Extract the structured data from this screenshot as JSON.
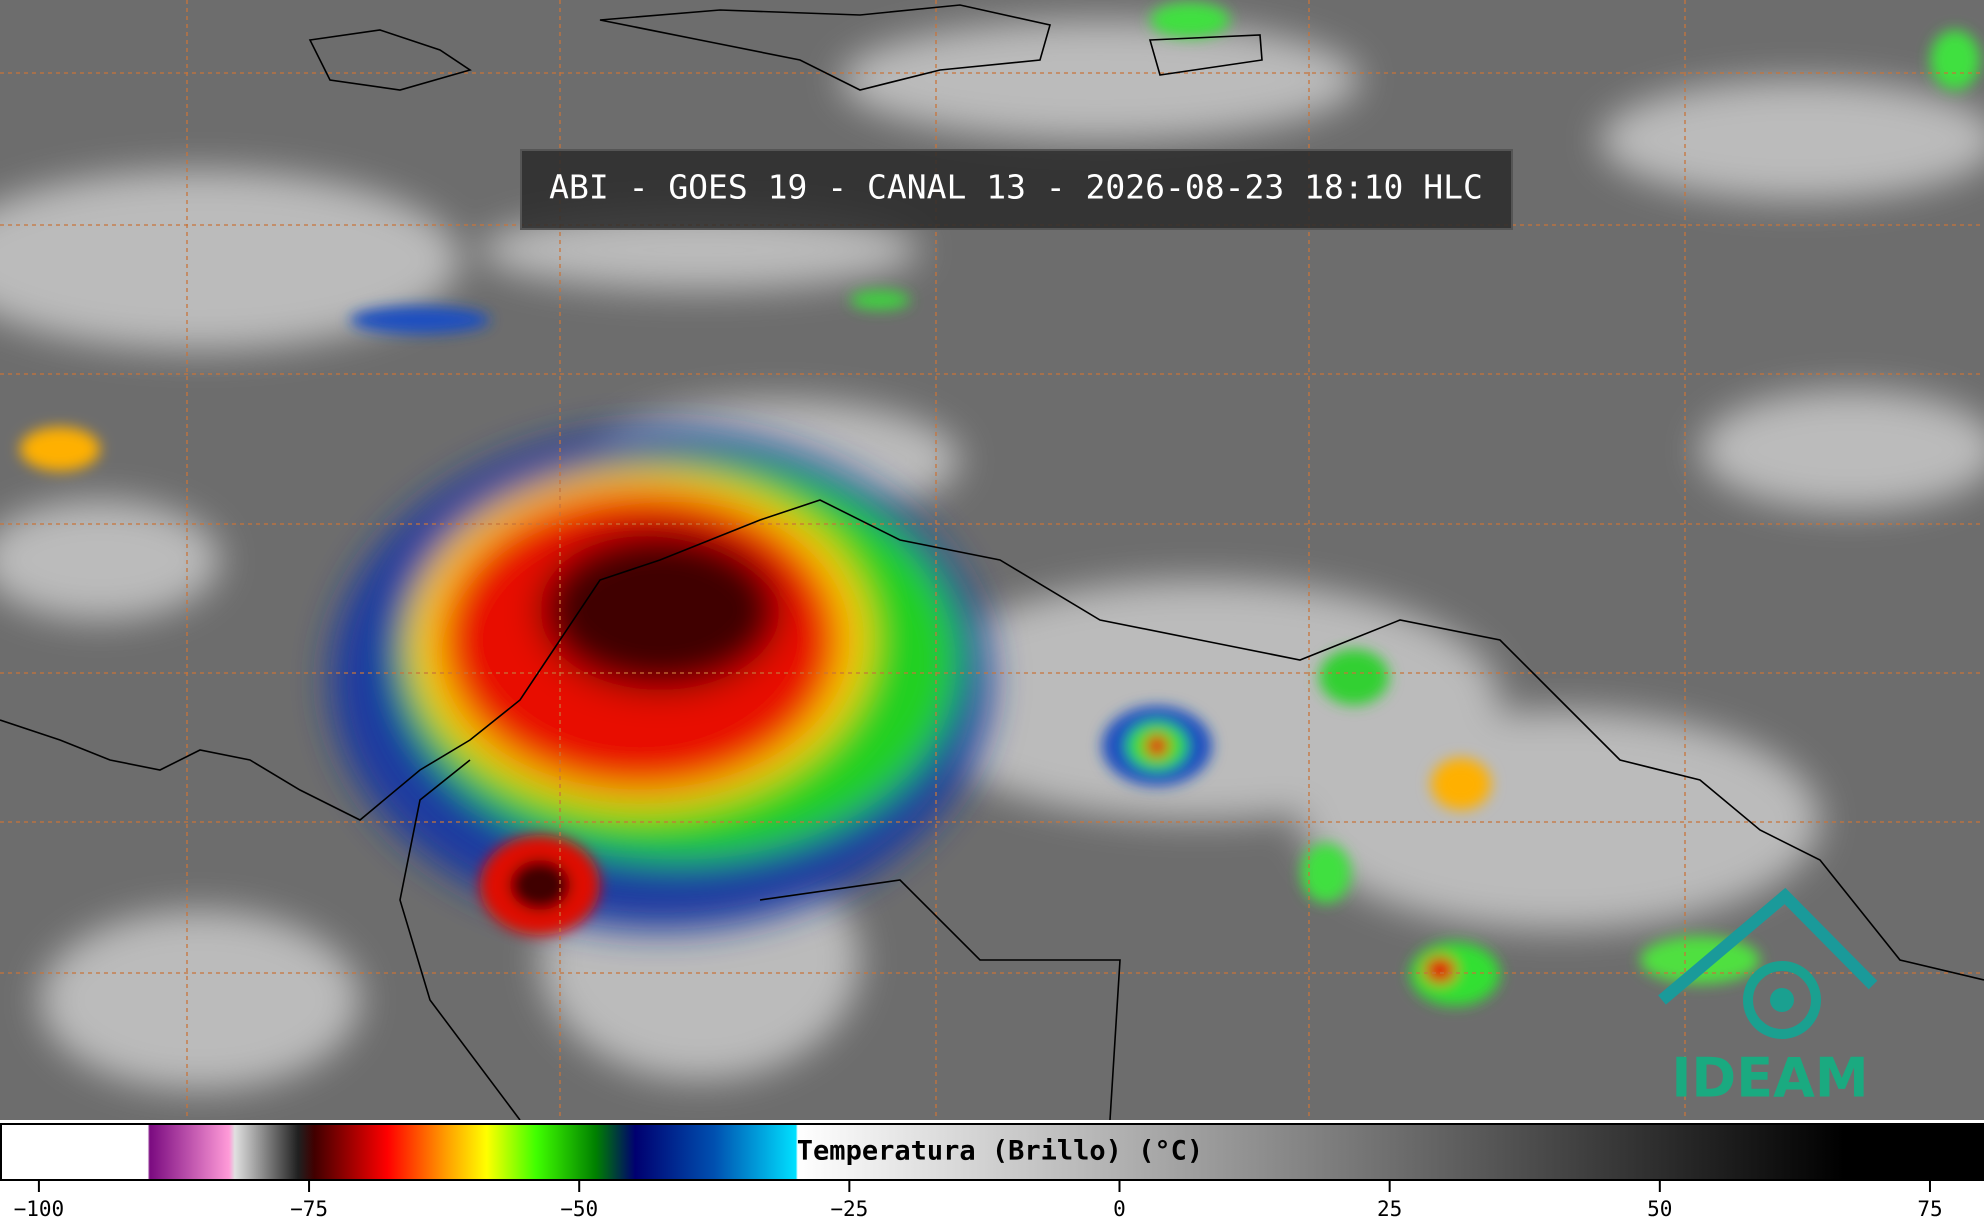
{
  "title": "ABI - GOES 19 - CANAL 13 - 2026-08-23 18:10 HLC",
  "logo": "IDEAM",
  "colorbar": {
    "label": "Temperatura (Brillo) (°C)",
    "lim": [
      -103.6,
      80
    ],
    "ticks": [
      {
        "value": -100,
        "label": "−100"
      },
      {
        "value": -75,
        "label": "−75"
      },
      {
        "value": -50,
        "label": "−50"
      },
      {
        "value": -25,
        "label": "−25"
      },
      0,
      25,
      50,
      75
    ]
  }
}
